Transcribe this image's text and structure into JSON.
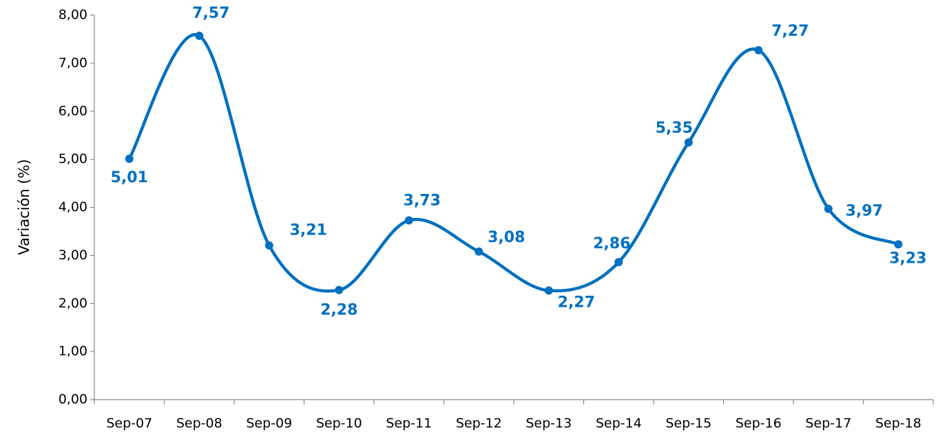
{
  "chart_data": {
    "type": "line",
    "y_label": "Variación (%)",
    "categories": [
      "Sep-07",
      "Sep-08",
      "Sep-09",
      "Sep-10",
      "Sep-11",
      "Sep-12",
      "Sep-13",
      "Sep-14",
      "Sep-15",
      "Sep-16",
      "Sep-17",
      "Sep-18"
    ],
    "values": [
      5.01,
      7.57,
      3.21,
      2.28,
      3.73,
      3.08,
      2.27,
      2.86,
      5.35,
      7.27,
      3.97,
      3.23
    ],
    "value_labels": [
      "5,01",
      "7,57",
      "3,21",
      "2,28",
      "3,73",
      "3,08",
      "2,27",
      "2,86",
      "5,35",
      "7,27",
      "3,97",
      "3,23"
    ],
    "color": "#0070c0",
    "smooth": true,
    "ylim": [
      0,
      8
    ],
    "yticks": [
      {
        "value": 0,
        "label": "0,00"
      },
      {
        "value": 1,
        "label": "1,00"
      },
      {
        "value": 2,
        "label": "2,00"
      },
      {
        "value": 3,
        "label": "3,00"
      },
      {
        "value": 4,
        "label": "4,00"
      },
      {
        "value": 5,
        "label": "5,00"
      },
      {
        "value": 6,
        "label": "6,00"
      },
      {
        "value": 7,
        "label": "7,00"
      },
      {
        "value": 8,
        "label": "8,00"
      }
    ],
    "grid": false
  }
}
